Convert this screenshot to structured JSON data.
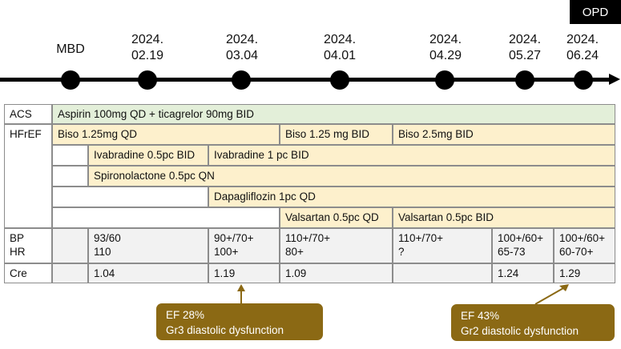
{
  "badge": "OPD",
  "timeline": {
    "points": [
      {
        "line1": "MBD",
        "line2": ""
      },
      {
        "line1": "2024.",
        "line2": "02.19"
      },
      {
        "line1": "2024.",
        "line2": "03.04"
      },
      {
        "line1": "2024.",
        "line2": "04.01"
      },
      {
        "line1": "2024.",
        "line2": "04.29"
      },
      {
        "line1": "2024.",
        "line2": "05.27"
      },
      {
        "line1": "2024.",
        "line2": "06.24"
      }
    ]
  },
  "table": {
    "row_labels": {
      "acs": "ACS",
      "hfref": "HFrEF",
      "bp": "BP",
      "hr": "HR",
      "cre": "Cre"
    },
    "acs_regimen": "Aspirin 100mg QD + ticagrelor 90mg BID",
    "biso": [
      "Biso 1.25mg QD",
      "Biso 1.25 mg BID",
      "Biso 2.5mg BID"
    ],
    "ivabradine": [
      "Ivabradine 0.5pc BID",
      "Ivabradine 1 pc BID"
    ],
    "spironolactone": "Spironolactone 0.5pc QN",
    "dapagliflozin": "Dapagliflozin 1pc QD",
    "valsartan": [
      "Valsartan 0.5pc QD",
      "Valsartan 0.5pc BID"
    ],
    "bp": [
      "",
      "93/60",
      "90+/70+",
      "110+/70+",
      "110+/70+",
      "100+/60+",
      "100+/60+"
    ],
    "hr": [
      "",
      "110",
      "100+",
      "80+",
      "?",
      "65-73",
      "60-70+"
    ],
    "cre": [
      "",
      "1.04",
      "1.19",
      "1.09",
      "",
      "1.24",
      "1.29"
    ]
  },
  "callouts": [
    {
      "line1": "EF 28%",
      "line2": "Gr3 diastolic dysfunction"
    },
    {
      "line1": "EF 43%",
      "line2": "Gr2 diastolic dysfunction"
    }
  ],
  "colors": {
    "acs": "#e3efd9",
    "hfref": "#fdf0cc",
    "vitals": "#f2f2f2",
    "callout": "#8b6914"
  }
}
